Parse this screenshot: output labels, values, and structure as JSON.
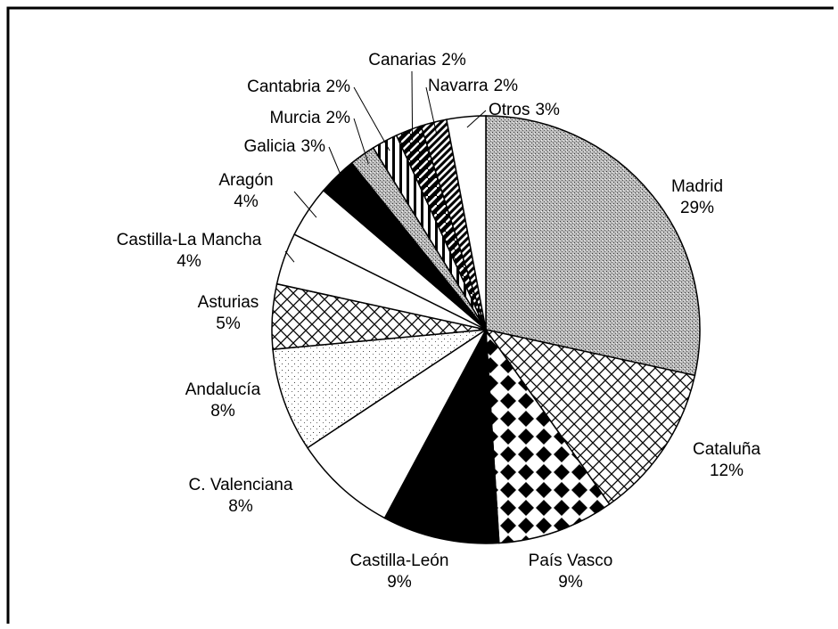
{
  "chart_data": {
    "type": "pie",
    "categories": [
      "Madrid",
      "Cataluña",
      "País Vasco",
      "Castilla-León",
      "C. Valenciana",
      "Andalucía",
      "Asturias",
      "Castilla-La Mancha",
      "Aragón",
      "Galicia",
      "Murcia",
      "Cantabria",
      "Canarias",
      "Navarra",
      "Otros"
    ],
    "values": [
      29,
      12,
      9,
      9,
      8,
      8,
      5,
      4,
      4,
      3,
      2,
      2,
      2,
      2,
      3
    ],
    "value_labels": [
      "29%",
      "12%",
      "9%",
      "9%",
      "8%",
      "8%",
      "5%",
      "4%",
      "4%",
      "3%",
      "2%",
      "2%",
      "2%",
      "2%",
      "3%"
    ],
    "fills": [
      "stipple",
      "crosshatch",
      "diamonds",
      "black",
      "white",
      "dots",
      "crosshatch",
      "white",
      "white",
      "black",
      "stipple",
      "vstripes",
      "blackdiag",
      "dstripes",
      "white"
    ]
  }
}
